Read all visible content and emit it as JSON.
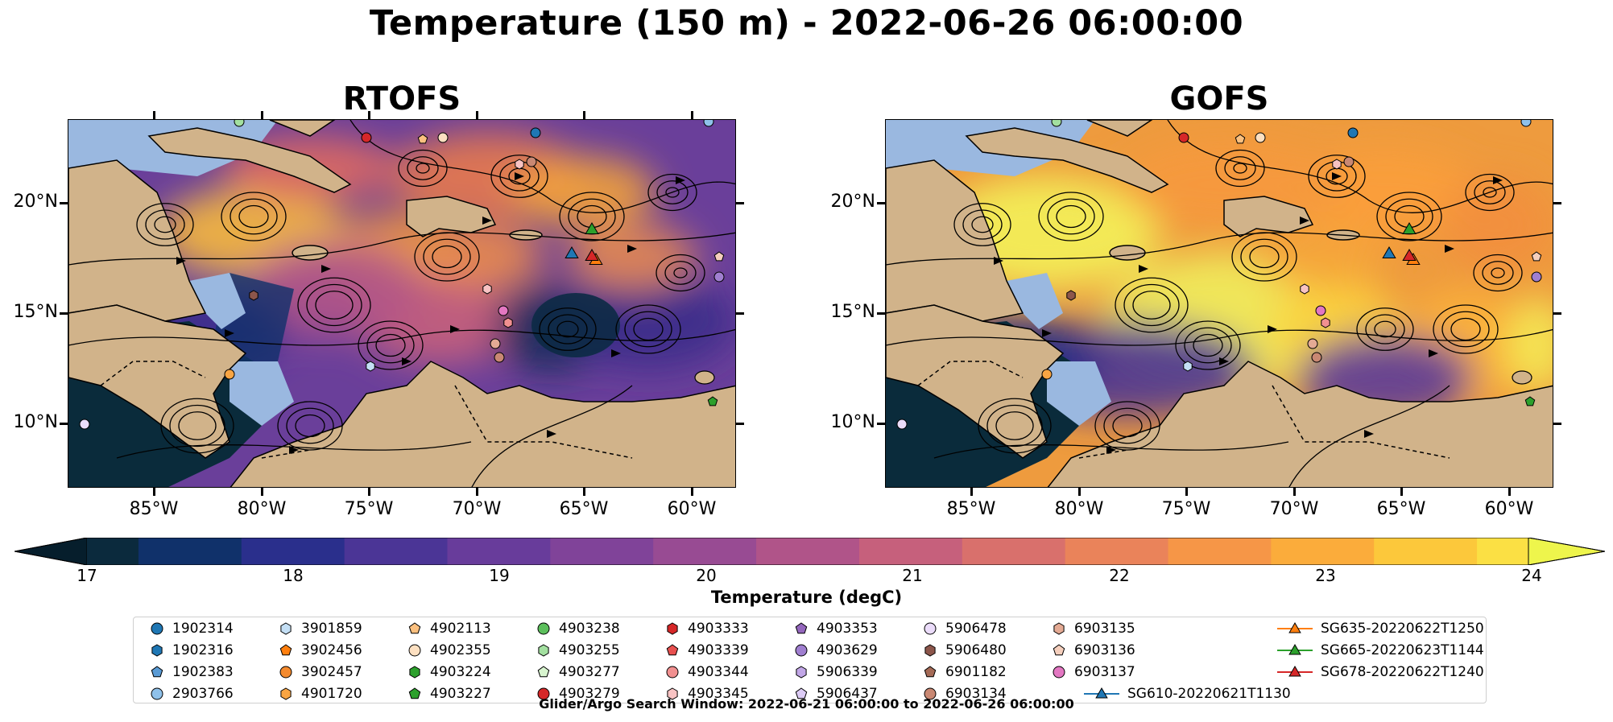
{
  "title": "Temperature (150 m) - 2022-06-26 06:00:00",
  "panels": [
    {
      "title": "RTOFS",
      "scheme": "cool"
    },
    {
      "title": "GOFS",
      "scheme": "warm"
    }
  ],
  "axes": {
    "y_ticks": [
      "20°N",
      "15°N",
      "10°N"
    ],
    "x_ticks": [
      "85°W",
      "80°W",
      "75°W",
      "70°W",
      "65°W",
      "60°W"
    ]
  },
  "colorbar": {
    "label": "Temperature (degC)",
    "min": 17,
    "max": 24,
    "ticks": [
      "17",
      "18",
      "19",
      "20",
      "21",
      "22",
      "23",
      "24"
    ],
    "colors": [
      "#0b2a3d",
      "#10316a",
      "#2a2f8c",
      "#4b3596",
      "#683c9b",
      "#804399",
      "#984b93",
      "#b05489",
      "#c6607c",
      "#d9706c",
      "#ea835a",
      "#f69647",
      "#fbac3b",
      "#fcc83b",
      "#fbe044"
    ],
    "under_color": "#061e2c",
    "over_color": "#eef54c"
  },
  "map_colors": {
    "land": "#d1b38a",
    "shallow_water": "#9ab8e0",
    "deep_dark": "#0a2b3b"
  },
  "legend": {
    "items": [
      {
        "label": "1902314",
        "marker": "circle",
        "color": "#1f77b4"
      },
      {
        "label": "1902316",
        "marker": "hexagon",
        "color": "#1f77b4"
      },
      {
        "label": "1902383",
        "marker": "pentagon",
        "color": "#5a9bd5"
      },
      {
        "label": "2903766",
        "marker": "circle",
        "color": "#8fc1ea"
      },
      {
        "label": "3901859",
        "marker": "hexagon",
        "color": "#c4dff5"
      },
      {
        "label": "3902456",
        "marker": "pentagon",
        "color": "#ff7f0e"
      },
      {
        "label": "3902457",
        "marker": "circle",
        "color": "#f48a2e"
      },
      {
        "label": "4901720",
        "marker": "hexagon",
        "color": "#f9a543"
      },
      {
        "label": "4902113",
        "marker": "pentagon",
        "color": "#fbc07f"
      },
      {
        "label": "4902355",
        "marker": "circle",
        "color": "#fde0c1"
      },
      {
        "label": "4903224",
        "marker": "hexagon",
        "color": "#2ca02c"
      },
      {
        "label": "4903227",
        "marker": "pentagon",
        "color": "#2ca02c"
      },
      {
        "label": "4903238",
        "marker": "circle",
        "color": "#5cbf5c"
      },
      {
        "label": "4903255",
        "marker": "hexagon",
        "color": "#a3e0a0"
      },
      {
        "label": "4903277",
        "marker": "pentagon",
        "color": "#d8f5cf"
      },
      {
        "label": "4903279",
        "marker": "circle",
        "color": "#d62728"
      },
      {
        "label": "4903333",
        "marker": "hexagon",
        "color": "#d62728"
      },
      {
        "label": "4903339",
        "marker": "pentagon",
        "color": "#e8504f"
      },
      {
        "label": "4903344",
        "marker": "circle",
        "color": "#f19090"
      },
      {
        "label": "4903345",
        "marker": "hexagon",
        "color": "#f8c3c3"
      },
      {
        "label": "4903353",
        "marker": "pentagon",
        "color": "#9467bd"
      },
      {
        "label": "4903629",
        "marker": "circle",
        "color": "#a07fd0"
      },
      {
        "label": "5906339",
        "marker": "hexagon",
        "color": "#c1a6e6"
      },
      {
        "label": "5906437",
        "marker": "pentagon",
        "color": "#dccbf5"
      },
      {
        "label": "5906478",
        "marker": "circle",
        "color": "#ebdcfa"
      },
      {
        "label": "5906480",
        "marker": "hexagon",
        "color": "#8c564b"
      },
      {
        "label": "6901182",
        "marker": "pentagon",
        "color": "#a56a56"
      },
      {
        "label": "6903134",
        "marker": "circle",
        "color": "#c98873"
      },
      {
        "label": "6903135",
        "marker": "hexagon",
        "color": "#e4aa94"
      },
      {
        "label": "6903136",
        "marker": "pentagon",
        "color": "#f5cfbd"
      },
      {
        "label": "6903137",
        "marker": "circle",
        "color": "#e377c2"
      },
      {
        "label": "SG610-20220621T1130",
        "marker": "glider",
        "color": "#1f77b4"
      },
      {
        "label": "SG635-20220622T1250",
        "marker": "glider",
        "color": "#ff7f0e"
      },
      {
        "label": "SG665-20220623T1144",
        "marker": "glider",
        "color": "#2ca02c"
      },
      {
        "label": "SG678-20220622T1240",
        "marker": "glider",
        "color": "#d62728"
      }
    ]
  },
  "search_window": "Glider/Argo Search Window: 2022-06-21 06:00:00 to 2022-06-26 06:00:00"
}
